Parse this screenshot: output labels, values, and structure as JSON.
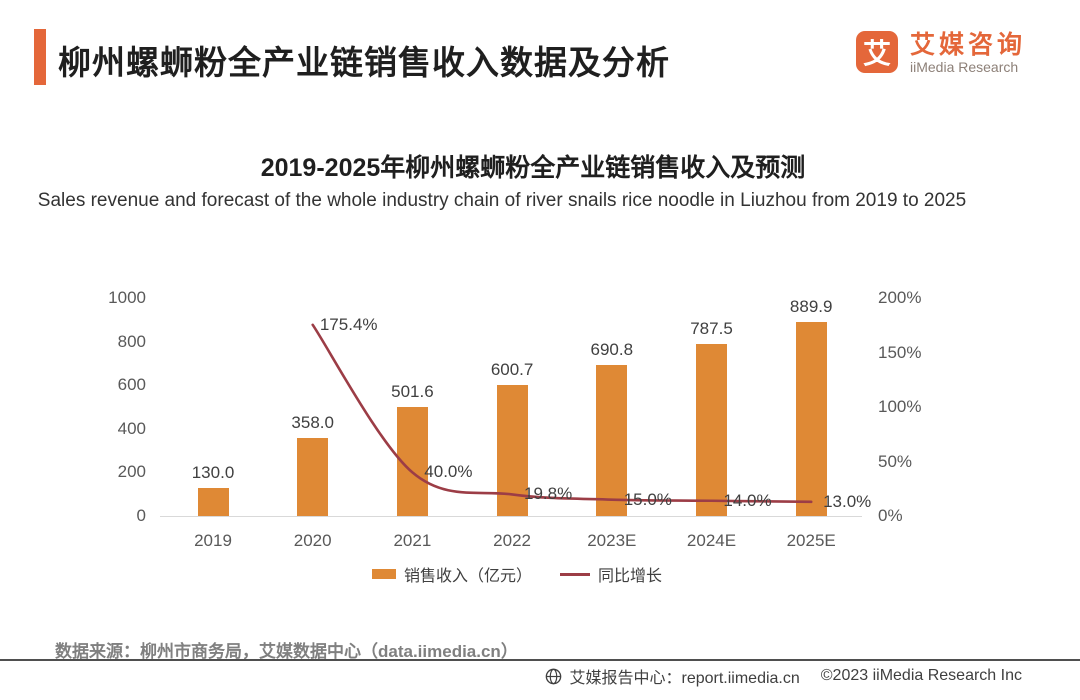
{
  "colors": {
    "brand_orange": "#E4673A",
    "bar_orange": "#DF8935",
    "line_maroon": "#9C3D46"
  },
  "header": {
    "title": "柳州螺蛳粉全产业链销售收入数据及分析",
    "logo": {
      "glyph": "艾",
      "name_cn": "艾媒咨询",
      "name_en": "iiMedia Research"
    }
  },
  "chart": {
    "title": "2019-2025年柳州螺蛳粉全产业链销售收入及预测",
    "subtitle": "Sales revenue and forecast of the whole industry chain of river snails rice noodle in Liuzhou  from 2019 to 2025"
  },
  "chart_data": {
    "type": "bar+line combo",
    "categories": [
      "2019",
      "2020",
      "2021",
      "2022",
      "2023E",
      "2024E",
      "2025E"
    ],
    "series": [
      {
        "name": "销售收入（亿元）",
        "type": "bar",
        "axis": "left",
        "color": "#DF8935",
        "values": [
          130.0,
          358.0,
          501.6,
          600.7,
          690.8,
          787.5,
          889.9
        ],
        "labels": [
          "130.0",
          "358.0",
          "501.6",
          "600.7",
          "690.8",
          "787.5",
          "889.9"
        ]
      },
      {
        "name": "同比增长",
        "type": "line",
        "axis": "right",
        "color": "#9C3D46",
        "values": [
          null,
          175.4,
          40.0,
          19.8,
          15.0,
          14.0,
          13.0
        ],
        "labels": [
          null,
          "175.4%",
          "40.0%",
          "19.8%",
          "15.0%",
          "14.0%",
          "13.0%"
        ]
      }
    ],
    "left_axis": {
      "min": 0,
      "max": 1000,
      "tick_values": [
        0,
        200,
        400,
        600,
        800,
        1000
      ],
      "ticks": [
        "0",
        "200",
        "400",
        "600",
        "800",
        "1000"
      ]
    },
    "right_axis": {
      "min": 0,
      "max": 200,
      "tick_values": [
        0,
        50,
        100,
        150,
        200
      ],
      "ticks": [
        "0%",
        "50%",
        "100%",
        "150%",
        "200%"
      ]
    },
    "legend_position": "bottom",
    "grid": false
  },
  "footer": {
    "source": "数据来源：柳州市商务局，艾媒数据中心（data.iimedia.cn）",
    "report_center": "艾媒报告中心：report.iimedia.cn",
    "copyright": "©2023  iiMedia Research Inc"
  }
}
